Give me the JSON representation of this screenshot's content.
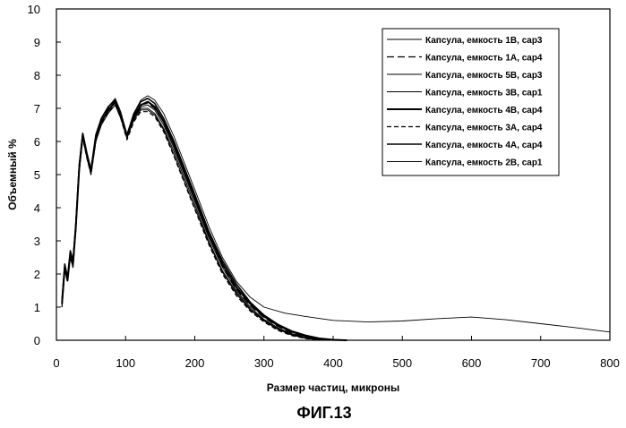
{
  "chart_data": {
    "type": "line",
    "caption": "ФИГ.13",
    "xlabel": "Размер частиц, микроны",
    "ylabel": "Объемный %",
    "xlim": [
      0,
      800
    ],
    "ylim": [
      0,
      10
    ],
    "xticks": [
      0,
      100,
      200,
      300,
      400,
      500,
      600,
      700,
      800
    ],
    "yticks": [
      0,
      1,
      2,
      3,
      4,
      5,
      6,
      7,
      8,
      9,
      10
    ],
    "grid": false,
    "legend_position": "top-right",
    "series": [
      {
        "name": "Капсула, емкость 1В, cap3",
        "dash": "none",
        "width": 1.0,
        "points": [
          [
            8,
            1.1
          ],
          [
            12,
            2.2
          ],
          [
            16,
            1.8
          ],
          [
            20,
            2.6
          ],
          [
            24,
            2.3
          ],
          [
            28,
            3.4
          ],
          [
            33,
            5.2
          ],
          [
            38,
            6.2
          ],
          [
            44,
            5.6
          ],
          [
            50,
            5.1
          ],
          [
            57,
            6.1
          ],
          [
            65,
            6.6
          ],
          [
            75,
            6.9
          ],
          [
            85,
            7.2
          ],
          [
            93,
            6.8
          ],
          [
            102,
            6.1
          ],
          [
            112,
            6.7
          ],
          [
            122,
            7.0
          ],
          [
            132,
            7.0
          ],
          [
            142,
            6.85
          ],
          [
            155,
            6.4
          ],
          [
            170,
            5.7
          ],
          [
            185,
            4.9
          ],
          [
            200,
            4.1
          ],
          [
            220,
            3.0
          ],
          [
            240,
            2.1
          ],
          [
            260,
            1.45
          ],
          [
            280,
            0.95
          ],
          [
            300,
            0.6
          ],
          [
            320,
            0.35
          ],
          [
            340,
            0.18
          ],
          [
            360,
            0.07
          ],
          [
            380,
            0.02
          ],
          [
            400,
            0
          ]
        ]
      },
      {
        "name": "Капсула, емкость 1А, cap4",
        "dash": "8 4",
        "width": 1.2,
        "points": [
          [
            8,
            1.2
          ],
          [
            12,
            2.3
          ],
          [
            16,
            1.9
          ],
          [
            20,
            2.7
          ],
          [
            24,
            2.4
          ],
          [
            28,
            3.5
          ],
          [
            33,
            5.3
          ],
          [
            38,
            6.2
          ],
          [
            44,
            5.6
          ],
          [
            50,
            5.1
          ],
          [
            57,
            6.2
          ],
          [
            65,
            6.7
          ],
          [
            75,
            7.0
          ],
          [
            85,
            7.25
          ],
          [
            93,
            6.85
          ],
          [
            102,
            6.2
          ],
          [
            112,
            6.8
          ],
          [
            122,
            7.1
          ],
          [
            132,
            7.15
          ],
          [
            142,
            7.0
          ],
          [
            155,
            6.6
          ],
          [
            170,
            5.9
          ],
          [
            185,
            5.1
          ],
          [
            200,
            4.3
          ],
          [
            220,
            3.2
          ],
          [
            240,
            2.25
          ],
          [
            260,
            1.55
          ],
          [
            280,
            1.05
          ],
          [
            300,
            0.68
          ],
          [
            320,
            0.42
          ],
          [
            340,
            0.23
          ],
          [
            360,
            0.11
          ],
          [
            380,
            0.04
          ],
          [
            400,
            0.01
          ],
          [
            420,
            0
          ]
        ]
      },
      {
        "name": "Капсула, емкость 5В, cap3",
        "dash": "none",
        "width": 1.0,
        "points": [
          [
            8,
            1.0
          ],
          [
            12,
            2.1
          ],
          [
            16,
            1.8
          ],
          [
            20,
            2.5
          ],
          [
            24,
            2.2
          ],
          [
            28,
            3.3
          ],
          [
            33,
            5.1
          ],
          [
            38,
            6.1
          ],
          [
            44,
            5.5
          ],
          [
            50,
            5.0
          ],
          [
            57,
            6.0
          ],
          [
            65,
            6.5
          ],
          [
            75,
            6.85
          ],
          [
            85,
            7.1
          ],
          [
            93,
            6.7
          ],
          [
            102,
            6.1
          ],
          [
            112,
            6.65
          ],
          [
            122,
            6.95
          ],
          [
            132,
            6.95
          ],
          [
            142,
            6.8
          ],
          [
            155,
            6.35
          ],
          [
            170,
            5.6
          ],
          [
            185,
            4.8
          ],
          [
            200,
            4.0
          ],
          [
            220,
            2.95
          ],
          [
            240,
            2.05
          ],
          [
            260,
            1.4
          ],
          [
            280,
            0.92
          ],
          [
            300,
            0.58
          ],
          [
            320,
            0.33
          ],
          [
            340,
            0.16
          ],
          [
            360,
            0.06
          ],
          [
            380,
            0.01
          ],
          [
            400,
            0
          ]
        ]
      },
      {
        "name": "Капсула, емкость 3В, cap1",
        "dash": "none",
        "width": 1.0,
        "points": [
          [
            8,
            1.1
          ],
          [
            12,
            2.2
          ],
          [
            16,
            1.9
          ],
          [
            20,
            2.6
          ],
          [
            24,
            2.3
          ],
          [
            28,
            3.4
          ],
          [
            33,
            5.2
          ],
          [
            38,
            6.2
          ],
          [
            44,
            5.6
          ],
          [
            50,
            5.1
          ],
          [
            57,
            6.1
          ],
          [
            65,
            6.6
          ],
          [
            75,
            6.95
          ],
          [
            85,
            7.15
          ],
          [
            93,
            6.75
          ],
          [
            102,
            6.1
          ],
          [
            112,
            6.7
          ],
          [
            122,
            7.05
          ],
          [
            132,
            7.1
          ],
          [
            142,
            6.95
          ],
          [
            155,
            6.5
          ],
          [
            170,
            5.8
          ],
          [
            185,
            5.0
          ],
          [
            200,
            4.2
          ],
          [
            220,
            3.1
          ],
          [
            240,
            2.2
          ],
          [
            260,
            1.5
          ],
          [
            280,
            1.0
          ],
          [
            300,
            0.63
          ],
          [
            320,
            0.38
          ],
          [
            340,
            0.2
          ],
          [
            360,
            0.09
          ],
          [
            380,
            0.03
          ],
          [
            400,
            0
          ]
        ]
      },
      {
        "name": "Капсула, емкость 4В, cap4",
        "dash": "none",
        "width": 2.0,
        "points": [
          [
            8,
            1.1
          ],
          [
            12,
            2.2
          ],
          [
            16,
            1.8
          ],
          [
            20,
            2.6
          ],
          [
            24,
            2.3
          ],
          [
            28,
            3.4
          ],
          [
            33,
            5.2
          ],
          [
            38,
            6.2
          ],
          [
            44,
            5.6
          ],
          [
            50,
            5.1
          ],
          [
            57,
            6.1
          ],
          [
            65,
            6.6
          ],
          [
            75,
            6.95
          ],
          [
            85,
            7.2
          ],
          [
            93,
            6.8
          ],
          [
            102,
            6.15
          ],
          [
            112,
            6.75
          ],
          [
            122,
            7.1
          ],
          [
            132,
            7.2
          ],
          [
            142,
            7.05
          ],
          [
            155,
            6.6
          ],
          [
            170,
            5.9
          ],
          [
            185,
            5.1
          ],
          [
            200,
            4.3
          ],
          [
            220,
            3.2
          ],
          [
            240,
            2.3
          ],
          [
            260,
            1.6
          ],
          [
            280,
            1.1
          ],
          [
            300,
            0.72
          ],
          [
            320,
            0.45
          ],
          [
            340,
            0.26
          ],
          [
            360,
            0.13
          ],
          [
            380,
            0.05
          ],
          [
            400,
            0.01
          ],
          [
            420,
            0
          ]
        ]
      },
      {
        "name": "Капсула, емкость 3А, cap4",
        "dash": "5 3",
        "width": 1.2,
        "points": [
          [
            8,
            1.0
          ],
          [
            12,
            2.1
          ],
          [
            16,
            1.8
          ],
          [
            20,
            2.5
          ],
          [
            24,
            2.2
          ],
          [
            28,
            3.3
          ],
          [
            33,
            5.1
          ],
          [
            38,
            6.1
          ],
          [
            44,
            5.5
          ],
          [
            50,
            5.0
          ],
          [
            57,
            6.0
          ],
          [
            65,
            6.55
          ],
          [
            75,
            6.9
          ],
          [
            85,
            7.1
          ],
          [
            93,
            6.7
          ],
          [
            102,
            6.05
          ],
          [
            112,
            6.6
          ],
          [
            122,
            6.9
          ],
          [
            132,
            6.9
          ],
          [
            142,
            6.75
          ],
          [
            155,
            6.3
          ],
          [
            170,
            5.55
          ],
          [
            185,
            4.75
          ],
          [
            200,
            3.95
          ],
          [
            220,
            2.9
          ],
          [
            240,
            2.0
          ],
          [
            260,
            1.35
          ],
          [
            280,
            0.88
          ],
          [
            300,
            0.55
          ],
          [
            320,
            0.3
          ],
          [
            340,
            0.14
          ],
          [
            360,
            0.05
          ],
          [
            380,
            0.01
          ],
          [
            400,
            0
          ]
        ]
      },
      {
        "name": "Капсула, емкость 4А, cap4",
        "dash": "none",
        "width": 1.6,
        "points": [
          [
            8,
            1.2
          ],
          [
            12,
            2.3
          ],
          [
            16,
            1.9
          ],
          [
            20,
            2.7
          ],
          [
            24,
            2.4
          ],
          [
            28,
            3.5
          ],
          [
            33,
            5.3
          ],
          [
            38,
            6.25
          ],
          [
            44,
            5.65
          ],
          [
            50,
            5.15
          ],
          [
            57,
            6.2
          ],
          [
            65,
            6.7
          ],
          [
            75,
            7.05
          ],
          [
            85,
            7.25
          ],
          [
            93,
            6.85
          ],
          [
            102,
            6.2
          ],
          [
            112,
            6.85
          ],
          [
            122,
            7.2
          ],
          [
            132,
            7.3
          ],
          [
            142,
            7.15
          ],
          [
            155,
            6.7
          ],
          [
            170,
            6.0
          ],
          [
            185,
            5.2
          ],
          [
            200,
            4.4
          ],
          [
            220,
            3.3
          ],
          [
            240,
            2.4
          ],
          [
            260,
            1.7
          ],
          [
            280,
            1.15
          ],
          [
            300,
            0.76
          ],
          [
            320,
            0.48
          ],
          [
            340,
            0.28
          ],
          [
            360,
            0.15
          ],
          [
            380,
            0.06
          ],
          [
            400,
            0.02
          ],
          [
            420,
            0
          ]
        ]
      },
      {
        "name": "Капсула, емкость 2В, cap1",
        "dash": "none",
        "width": 0.9,
        "points": [
          [
            8,
            1.1
          ],
          [
            12,
            2.2
          ],
          [
            16,
            1.9
          ],
          [
            20,
            2.6
          ],
          [
            24,
            2.3
          ],
          [
            28,
            3.4
          ],
          [
            33,
            5.2
          ],
          [
            38,
            6.2
          ],
          [
            44,
            5.6
          ],
          [
            50,
            5.1
          ],
          [
            57,
            6.2
          ],
          [
            65,
            6.7
          ],
          [
            75,
            7.05
          ],
          [
            85,
            7.3
          ],
          [
            93,
            6.9
          ],
          [
            102,
            6.2
          ],
          [
            112,
            6.85
          ],
          [
            122,
            7.25
          ],
          [
            132,
            7.38
          ],
          [
            142,
            7.25
          ],
          [
            155,
            6.85
          ],
          [
            170,
            6.15
          ],
          [
            185,
            5.35
          ],
          [
            200,
            4.55
          ],
          [
            220,
            3.45
          ],
          [
            240,
            2.5
          ],
          [
            260,
            1.78
          ],
          [
            280,
            1.3
          ],
          [
            300,
            1.0
          ],
          [
            330,
            0.82
          ],
          [
            360,
            0.72
          ],
          [
            400,
            0.6
          ],
          [
            450,
            0.55
          ],
          [
            500,
            0.58
          ],
          [
            550,
            0.65
          ],
          [
            600,
            0.7
          ],
          [
            650,
            0.62
          ],
          [
            700,
            0.5
          ],
          [
            750,
            0.38
          ],
          [
            800,
            0.25
          ]
        ]
      }
    ]
  }
}
